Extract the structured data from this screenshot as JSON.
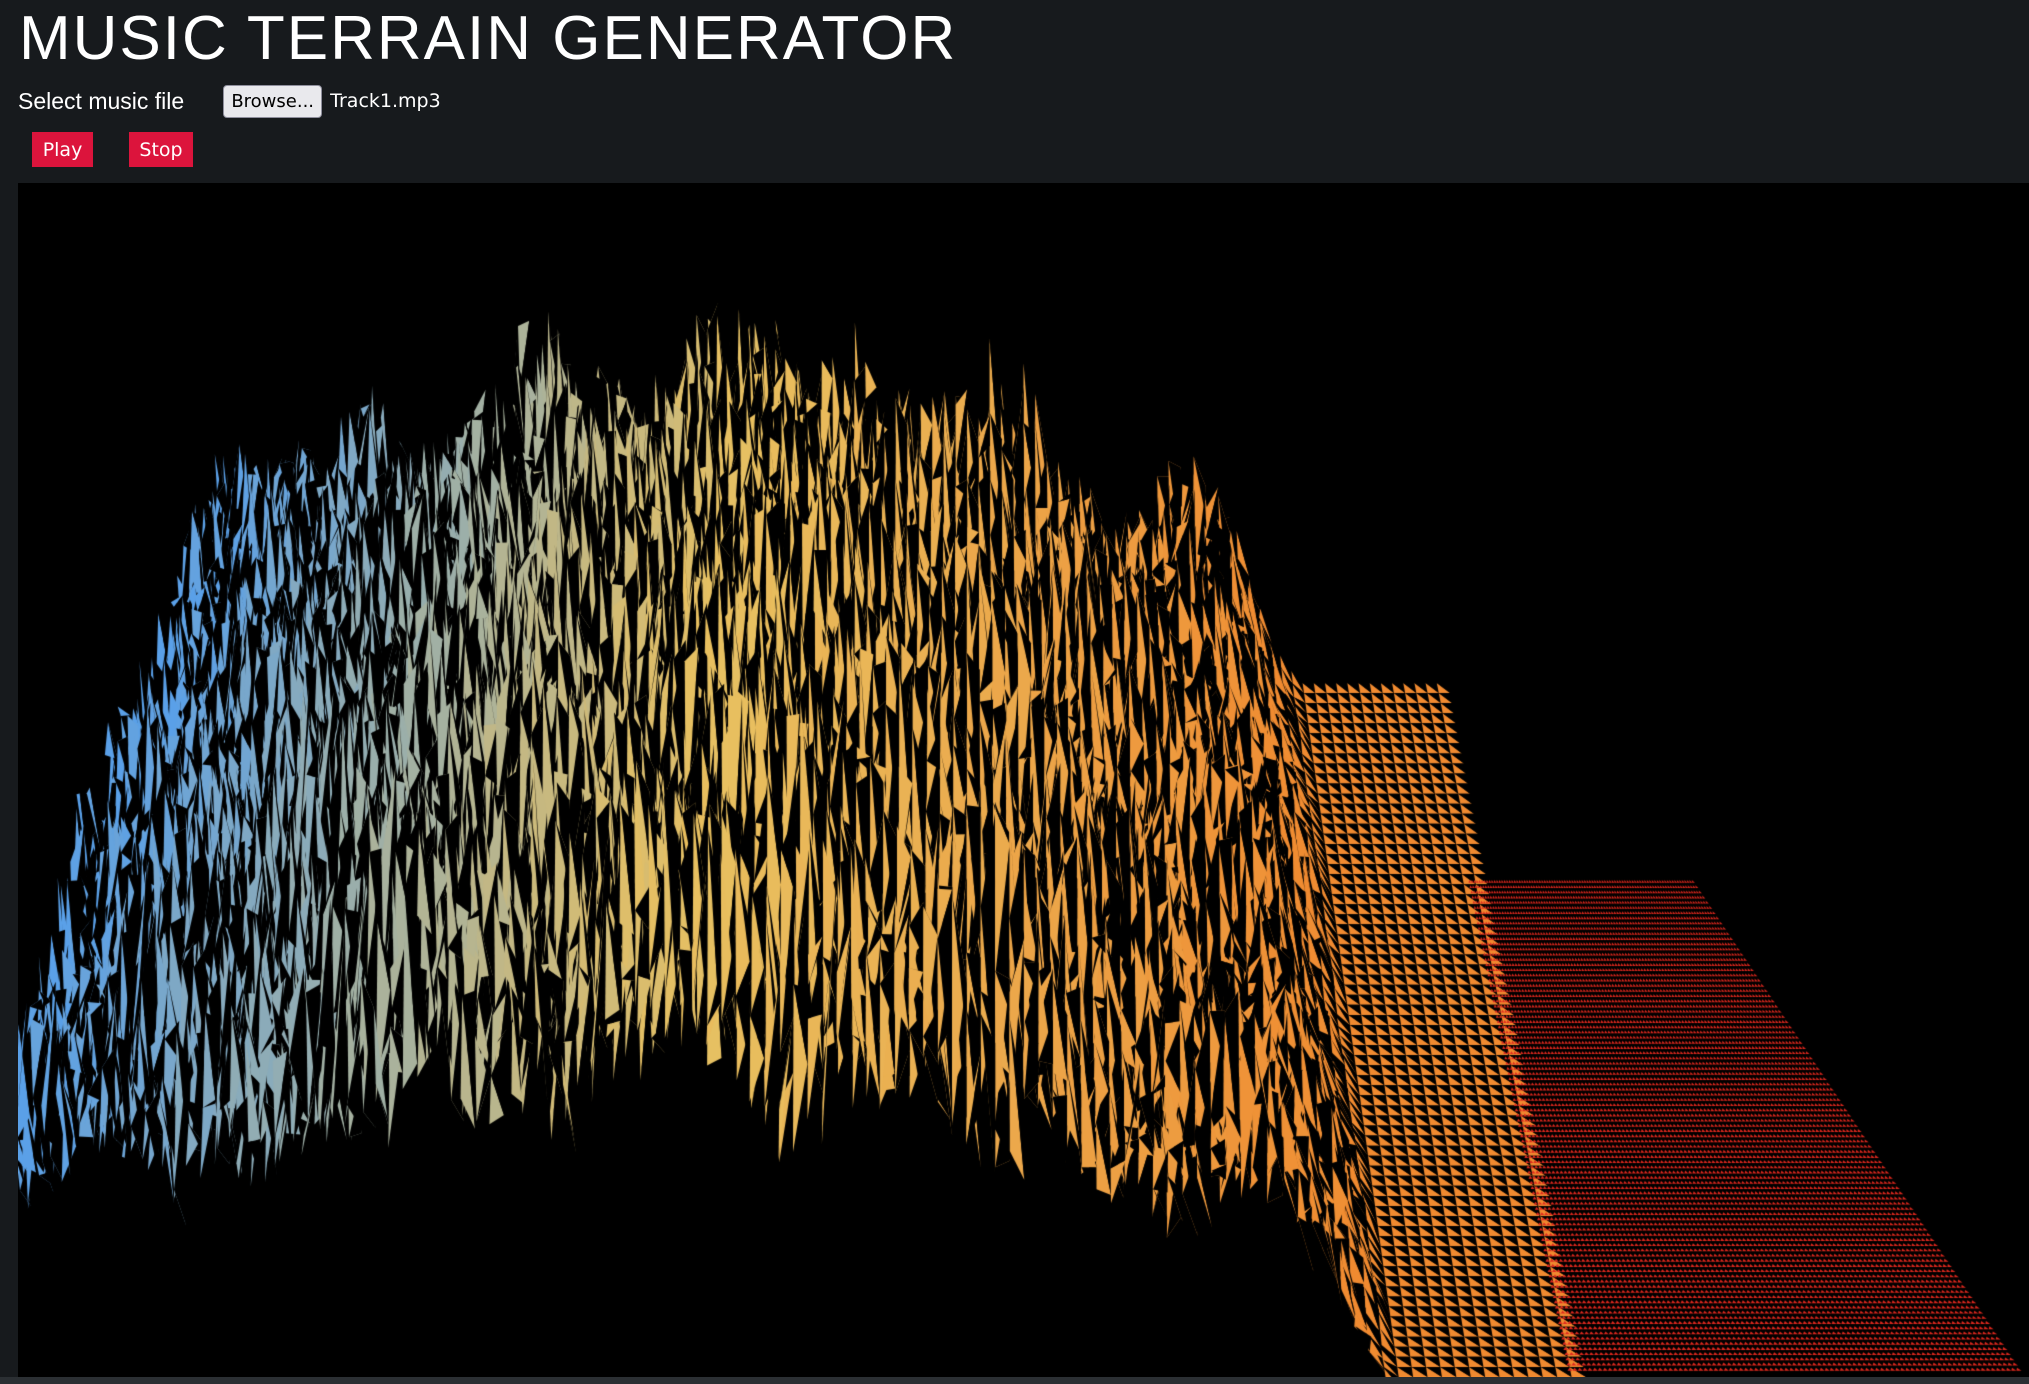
{
  "app": {
    "title": "MUSIC TERRAIN GENERATOR"
  },
  "file_input": {
    "label": "Select music file",
    "browse_label": "Browse...",
    "selected_file": "Track1.mp3"
  },
  "controls": {
    "play_label": "Play",
    "stop_label": "Stop"
  },
  "colors": {
    "background": "#171a1d",
    "button": "#dc143c",
    "terrain_low": "#5aa0e8",
    "terrain_mid": "#e8c060",
    "terrain_high": "#f08a30",
    "flat_grid": "#e0281e"
  }
}
